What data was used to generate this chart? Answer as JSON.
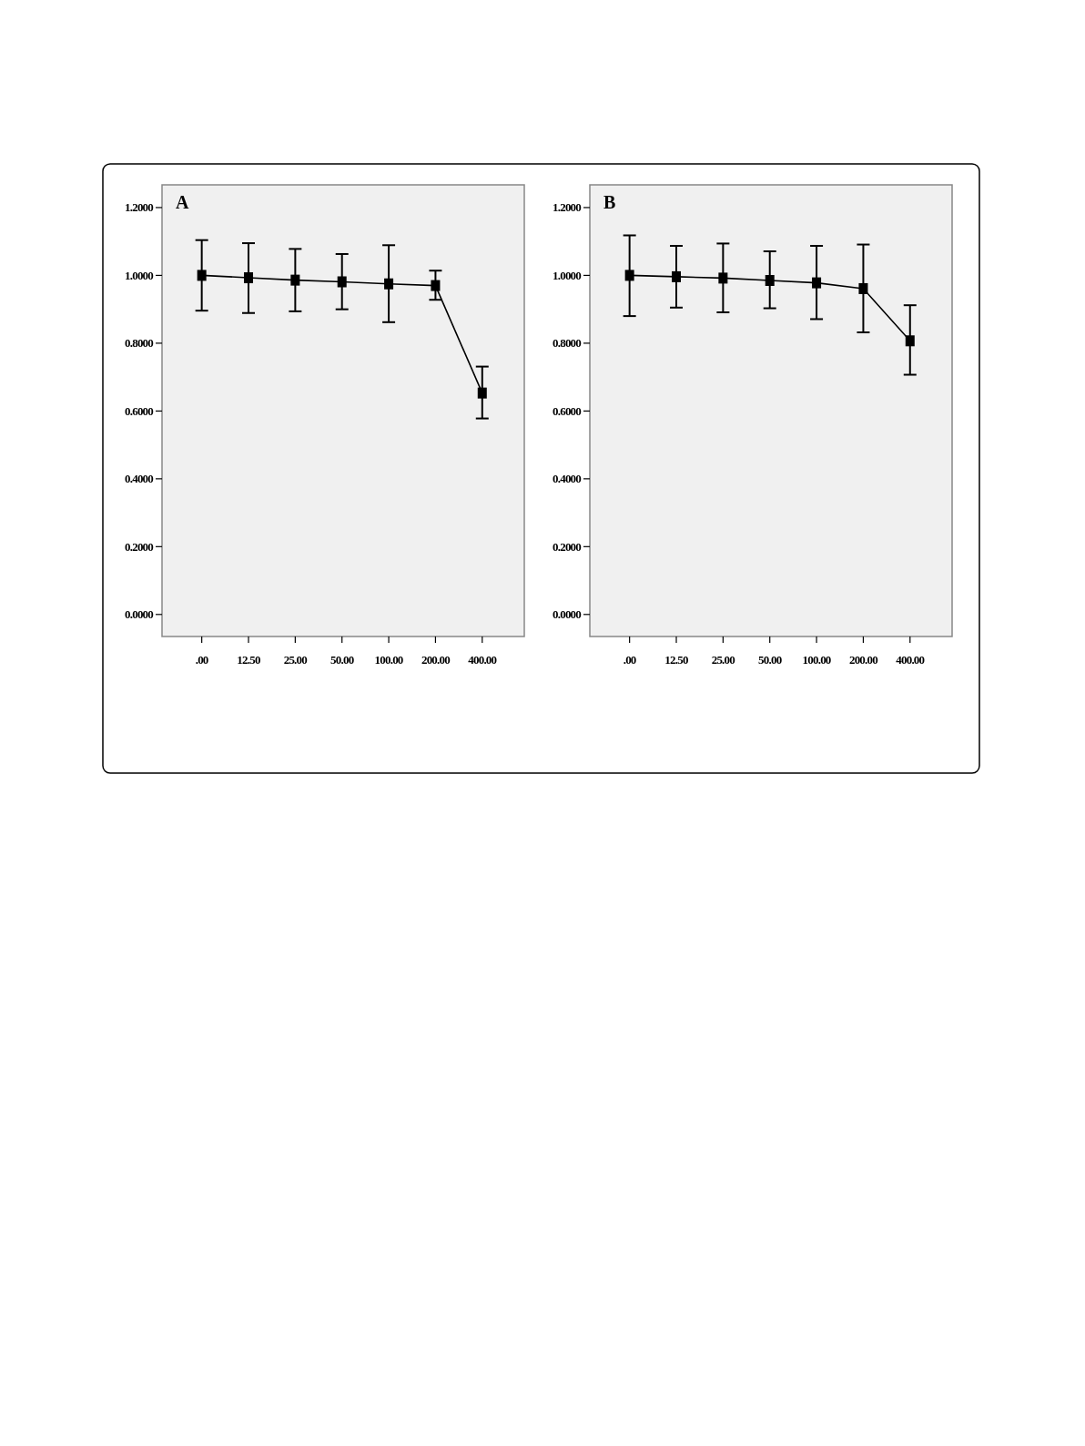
{
  "chart_data": [
    {
      "type": "line",
      "title": "A",
      "categories": [
        ".00",
        "12.50",
        "25.00",
        "50.00",
        "100.00",
        "200.00",
        "400.00"
      ],
      "series": [
        {
          "color": "#000000",
          "values": [
            1.0,
            0.993,
            0.986,
            0.981,
            0.975,
            0.97,
            0.653
          ],
          "errors": [
            [
              0.896,
              1.104
            ],
            [
              0.889,
              1.095
            ],
            [
              0.894,
              1.078
            ],
            [
              0.9,
              1.063
            ],
            [
              0.862,
              1.089
            ],
            [
              0.928,
              1.014
            ],
            [
              0.578,
              0.731
            ]
          ]
        }
      ],
      "ylim": [
        -0.065,
        1.267
      ],
      "yticks": [
        {
          "value": 0,
          "label": "0.0000"
        },
        {
          "value": 0.2,
          "label": "0.2000"
        },
        {
          "value": 0.4,
          "label": "0.4000"
        },
        {
          "value": 0.6,
          "label": "0.6000"
        },
        {
          "value": 0.8,
          "label": "0.8000"
        },
        {
          "value": 1,
          "label": "1.0000"
        },
        {
          "value": 1.2,
          "label": "1.2000"
        }
      ],
      "marker": "square",
      "line_style": "solid"
    },
    {
      "type": "line",
      "title": "B",
      "categories": [
        ".00",
        "12.50",
        "25.00",
        "50.00",
        "100.00",
        "200.00",
        "400.00"
      ],
      "series": [
        {
          "color": "#000000",
          "values": [
            1.0,
            0.996,
            0.992,
            0.985,
            0.978,
            0.961,
            0.807
          ],
          "errors": [
            [
              0.88,
              1.118
            ],
            [
              0.905,
              1.087
            ],
            [
              0.891,
              1.094
            ],
            [
              0.903,
              1.071
            ],
            [
              0.871,
              1.087
            ],
            [
              0.832,
              1.091
            ],
            [
              0.707,
              0.912
            ]
          ]
        }
      ],
      "ylim": [
        -0.065,
        1.267
      ],
      "yticks": [
        {
          "value": 0,
          "label": "0.0000"
        },
        {
          "value": 0.2,
          "label": "0.2000"
        },
        {
          "value": 0.4,
          "label": "0.4000"
        },
        {
          "value": 0.6,
          "label": "0.6000"
        },
        {
          "value": 0.8,
          "label": "0.8000"
        },
        {
          "value": 1,
          "label": "1.0000"
        },
        {
          "value": 1.2,
          "label": "1.2000"
        }
      ],
      "marker": "square",
      "line_style": "solid"
    }
  ]
}
